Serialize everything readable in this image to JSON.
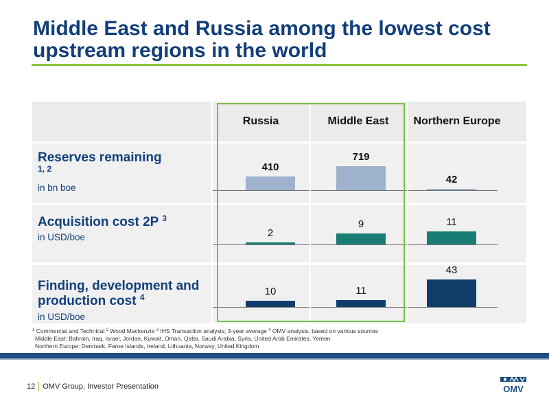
{
  "slide": {
    "title": "Middle East and Russia among the lowest cost upstream regions in the world"
  },
  "table": {
    "columns": [
      "Russia",
      "Middle East",
      "Northern Europe"
    ],
    "rows": [
      {
        "label": "Reserves remaining",
        "footnote_refs": "1, 2",
        "unit": "in bn boe",
        "values": [
          410,
          719,
          42
        ],
        "value_labels": [
          "410",
          "719",
          "42"
        ],
        "bar_color": "#9fb3ce"
      },
      {
        "label": "Acquisition cost 2P",
        "footnote_refs": "3",
        "unit": "in USD/boe",
        "values": [
          2,
          9,
          11
        ],
        "value_labels": [
          "2",
          "9",
          "11"
        ],
        "bar_color": "#1a7d73"
      },
      {
        "label": "Finding, development and production cost",
        "footnote_refs": "4",
        "unit": "in USD/boe",
        "values": [
          10,
          11,
          43
        ],
        "value_labels": [
          "10",
          "11",
          "43"
        ],
        "bar_color": "#123d6b"
      }
    ]
  },
  "footnotes": {
    "n1": "1",
    "t1": " Commercial and Technical ",
    "n2": "2",
    "t2": " Wood Mackenzie ",
    "n3": "3",
    "t3": " IHS Transaction analysis; 3-year average ",
    "n4": "4",
    "t4": " OMV analysis, based on various sources",
    "middle_east": "Middle East: Bahrain, Iraq, Israel, Jordan, Kuwait, Oman, Qatar, Saudi Arabia, Syria, United Arab Emirates, Yemen",
    "northern_europe": "Northern Europe: Denmark, Faroe Islands, Ireland, Lithuania, Norway, United Kingdom"
  },
  "footer": {
    "page_number": "12",
    "text": "OMV Group, Investor Presentation",
    "logo_text": "OMV"
  },
  "colors": {
    "title": "#123f7a",
    "accent_green": "#8cc63f",
    "band": "#1c4d83"
  }
}
